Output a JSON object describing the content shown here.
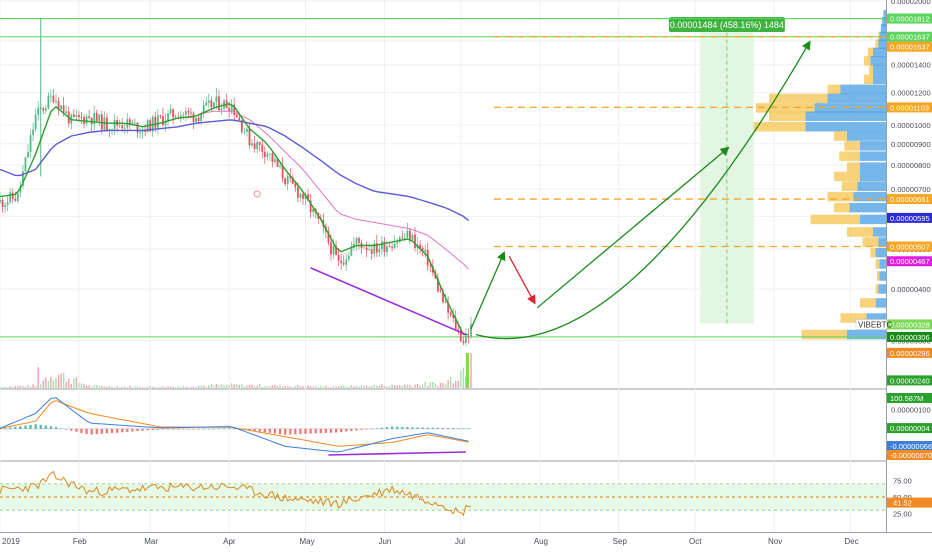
{
  "symbol": "VIBEBTC",
  "time_axis": [
    "2019",
    "Feb",
    "Mar",
    "Apr",
    "May",
    "Jun",
    "Jul",
    "Aug",
    "Sep",
    "Oct",
    "Nov",
    "Dec"
  ],
  "colors": {
    "grid": "#eef0f3",
    "axis_text": "#4a4e59",
    "up": "#53b987",
    "down": "#eb4d5c",
    "ema": "#2ca02c",
    "ma_blue": "#5b5bd6",
    "ma_pink": "#e377c2",
    "level_green": "#5cd65c",
    "level_orange": "#f5a623",
    "projection": "#1a8a1a",
    "divergence": "#9b30d9",
    "vp_blue": "#4a9de2",
    "vp_yellow": "#f7c85a",
    "rsi_line": "#d9891e",
    "rsi_band": "#e6f8e6",
    "macd_line": "#3d7fd9",
    "signal_line": "#f08a24"
  },
  "price_axis_ticks": [
    "0.00002000",
    "0.00001800",
    "0.00001600",
    "0.00001400",
    "0.00001200",
    "0.00001000",
    "0.00000900",
    "0.00000800",
    "0.00000700",
    "0.00000600",
    "0.00000500",
    "0.00000400",
    "0.00000300"
  ],
  "price_badges": [
    {
      "text": "0.00001812",
      "price": 1.812e-05,
      "color": "#5cd65c"
    },
    {
      "text": "0.00001637",
      "price": 1.637e-05,
      "color": "#5cd65c"
    },
    {
      "text": "0.00001637",
      "price": 1.637e-05,
      "color": "#f5a623"
    },
    {
      "text": "0.00001103",
      "price": 1.103e-05,
      "color": "#f5a623"
    },
    {
      "text": "0.00000661",
      "price": 6.61e-06,
      "color": "#f5a623"
    },
    {
      "text": "0.00000595",
      "price": 5.95e-06,
      "color": "#2c2cd6"
    },
    {
      "text": "0.00000507",
      "price": 5.07e-06,
      "color": "#f5a623"
    },
    {
      "text": "0.00000467",
      "price": 4.67e-06,
      "color": "#e020e0"
    },
    {
      "text": "0.00000328",
      "price": 3.28e-06,
      "color": "#7ed957"
    },
    {
      "text": "0.00000306",
      "price": 3.06e-06,
      "color": "#1a8a1a"
    },
    {
      "text": "0.00000296",
      "price": 2.96e-06,
      "color": "#f08a24"
    },
    {
      "text": "0.00000240",
      "price": 2.4e-06,
      "color": "#2ca02c"
    },
    {
      "text": "100.587M",
      "price": 2.3e-06,
      "color": "#2ca02c"
    }
  ],
  "measure_label": "0.00001484 (458.16%) 1484",
  "macd_axis": {
    "ticks": [
      "0.00000100"
    ],
    "badges": [
      {
        "text": "0.00000004",
        "color": "#2ca02c"
      },
      {
        "text": "-0.00000066",
        "color": "#3d7fd9"
      },
      {
        "text": "-0.00000070",
        "color": "#f08a24"
      }
    ]
  },
  "rsi_axis": {
    "ticks": [
      "75.00",
      "50.00",
      "25.00"
    ],
    "badge": "41.52"
  },
  "chart_data": [
    {
      "type": "line",
      "name": "price",
      "x": [
        "2019-01-01",
        "2019-01-08",
        "2019-01-15",
        "2019-01-22",
        "2019-01-29",
        "2019-02-05",
        "2019-02-12",
        "2019-02-19",
        "2019-02-26",
        "2019-03-05",
        "2019-03-12",
        "2019-03-19",
        "2019-03-26",
        "2019-04-02",
        "2019-04-09",
        "2019-04-16",
        "2019-04-23",
        "2019-04-30",
        "2019-05-07",
        "2019-05-14",
        "2019-05-21",
        "2019-05-28",
        "2019-06-04",
        "2019-06-11",
        "2019-06-18",
        "2019-06-25",
        "2019-07-02",
        "2019-07-05"
      ],
      "series": [
        {
          "name": "close",
          "values": [
            6.5e-06,
            6.7e-06,
            1.05e-05,
            1.18e-05,
            1.02e-05,
            1.05e-05,
            1e-05,
            1.01e-05,
            9.8e-06,
            1.03e-05,
            1.07e-05,
            1.05e-05,
            1.13e-05,
            1.12e-05,
            9.2e-06,
            8.6e-06,
            7.4e-06,
            6.7e-06,
            5.7e-06,
            4.6e-06,
            5.2e-06,
            5e-06,
            5.2e-06,
            5.4e-06,
            4.7e-06,
            3.6e-06,
            3e-06,
            3.2e-06
          ]
        },
        {
          "name": "ema_short",
          "values": [
            6.7e-06,
            6.8e-06,
            8.5e-06,
            1.12e-05,
            1.03e-05,
            1.02e-05,
            1.01e-05,
            1.01e-05,
            9.9e-06,
            1.01e-05,
            1.04e-05,
            1.05e-05,
            1.1e-05,
            1.13e-05,
            9.8e-06,
            9e-06,
            7.8e-06,
            6.9e-06,
            5.9e-06,
            4.9e-06,
            5.1e-06,
            5.1e-06,
            5.2e-06,
            5.3e-06,
            4.8e-06,
            3.8e-06,
            3.1e-06,
            3.1e-06
          ]
        },
        {
          "name": "ma_long",
          "values": [
            7.8e-06,
            7.5e-06,
            7.8e-06,
            8.9e-06,
            9.4e-06,
            9.6e-06,
            9.7e-06,
            9.7e-06,
            9.7e-06,
            9.8e-06,
            9.9e-06,
            1.01e-05,
            1.02e-05,
            1.03e-05,
            1.01e-05,
            9.9e-06,
            9.4e-06,
            8.8e-06,
            8.2e-06,
            7.6e-06,
            7.2e-06,
            6.9e-06,
            6.8e-06,
            6.7e-06,
            6.5e-06,
            6.3e-06,
            6e-06,
            5.8e-06
          ]
        },
        {
          "name": "ma_mid",
          "values": [
            null,
            null,
            null,
            null,
            null,
            null,
            null,
            null,
            null,
            null,
            null,
            1.06e-05,
            1.08e-05,
            1.08e-05,
            1.03e-05,
            9.5e-06,
            8.6e-06,
            7.8e-06,
            6.9e-06,
            6.1e-06,
            5.9e-06,
            5.8e-06,
            5.7e-06,
            5.6e-06,
            5.4e-06,
            5e-06,
            4.6e-06,
            4.4e-06
          ]
        }
      ],
      "ylim": [
        2.3e-06,
        2.01e-05
      ],
      "yscale": "log",
      "xlim": [
        "2019-01-01",
        "2019-12-15"
      ],
      "horizontal_levels": [
        {
          "price": 1.812e-05,
          "style": "solid",
          "color": "#5cd65c"
        },
        {
          "price": 1.637e-05,
          "style": "solid",
          "color": "#5cd65c"
        },
        {
          "price": 1.637e-05,
          "style": "dashed",
          "color": "#f5a623"
        },
        {
          "price": 1.103e-05,
          "style": "dashed",
          "color": "#f5a623"
        },
        {
          "price": 6.61e-06,
          "style": "dashed",
          "color": "#f5a623"
        },
        {
          "price": 5.07e-06,
          "style": "dashed",
          "color": "#f5a623"
        },
        {
          "price": 3.06e-06,
          "style": "solid",
          "color": "#5cd65c"
        }
      ],
      "projection_arrows": [
        {
          "from": [
            "2019-07-05",
            3.2e-06
          ],
          "to": [
            "2019-07-18",
            4.9e-06
          ],
          "color": "#1a8a1a"
        },
        {
          "from": [
            "2019-07-20",
            4.8e-06
          ],
          "to": [
            "2019-07-30",
            3.7e-06
          ],
          "color": "#e0202c"
        },
        {
          "from": [
            "2019-07-31",
            3.6e-06
          ],
          "to": [
            "2019-10-14",
            8.8e-06
          ],
          "color": "#1a8a1a"
        }
      ],
      "projection_curve": {
        "from": [
          "2019-07-07",
          3.1e-06
        ],
        "control": [
          "2019-09-01",
          2.5e-06
        ],
        "to": [
          "2019-11-15",
          1.59e-05
        ],
        "color": "#1a8a1a"
      },
      "divergence_line": {
        "from": [
          "2019-05-03",
          4.5e-06
        ],
        "to": [
          "2019-07-03",
          3.1e-06
        ]
      },
      "measure_zone": {
        "x_from": "2019-10-03",
        "x_to": "2019-10-24",
        "y_from": 3.3e-06,
        "y_to": 1.812e-05
      },
      "volume_profile": [
        {
          "price": 1.85e-05,
          "blue": 0.02,
          "yellow": 0.0
        },
        {
          "price": 1.78e-05,
          "blue": 0.03,
          "yellow": 0.0
        },
        {
          "price": 1.71e-05,
          "blue": 0.04,
          "yellow": 0.0
        },
        {
          "price": 1.64e-05,
          "blue": 0.05,
          "yellow": 0.01
        },
        {
          "price": 1.57e-05,
          "blue": 0.06,
          "yellow": 0.02
        },
        {
          "price": 1.5e-05,
          "blue": 0.1,
          "yellow": 0.04
        },
        {
          "price": 1.43e-05,
          "blue": 0.12,
          "yellow": 0.05
        },
        {
          "price": 1.36e-05,
          "blue": 0.1,
          "yellow": 0.03
        },
        {
          "price": 1.29e-05,
          "blue": 0.1,
          "yellow": 0.07
        },
        {
          "price": 1.22e-05,
          "blue": 0.35,
          "yellow": 0.1
        },
        {
          "price": 1.16e-05,
          "blue": 0.45,
          "yellow": 0.45
        },
        {
          "price": 1.1e-05,
          "blue": 0.55,
          "yellow": 0.45
        },
        {
          "price": 1.05e-05,
          "blue": 0.62,
          "yellow": 0.28
        },
        {
          "price": 9.9e-06,
          "blue": 0.62,
          "yellow": 0.4
        },
        {
          "price": 9.4e-06,
          "blue": 0.3,
          "yellow": 0.1
        },
        {
          "price": 8.9e-06,
          "blue": 0.2,
          "yellow": 0.12
        },
        {
          "price": 8.4e-06,
          "blue": 0.2,
          "yellow": 0.16
        },
        {
          "price": 7.9e-06,
          "blue": 0.2,
          "yellow": 0.1
        },
        {
          "price": 7.5e-06,
          "blue": 0.2,
          "yellow": 0.2
        },
        {
          "price": 7.1e-06,
          "blue": 0.22,
          "yellow": 0.12
        },
        {
          "price": 6.7e-06,
          "blue": 0.25,
          "yellow": 0.2
        },
        {
          "price": 6.3e-06,
          "blue": 0.28,
          "yellow": 0.12
        },
        {
          "price": 5.9e-06,
          "blue": 0.2,
          "yellow": 0.38
        },
        {
          "price": 5.5e-06,
          "blue": 0.1,
          "yellow": 0.2
        },
        {
          "price": 5.2e-06,
          "blue": 0.06,
          "yellow": 0.12
        },
        {
          "price": 4.9e-06,
          "blue": 0.08,
          "yellow": 0.04
        },
        {
          "price": 4.6e-06,
          "blue": 0.05,
          "yellow": 0.03
        },
        {
          "price": 4.3e-06,
          "blue": 0.05,
          "yellow": 0.02
        },
        {
          "price": 4e-06,
          "blue": 0.06,
          "yellow": 0.02
        },
        {
          "price": 3.7e-06,
          "blue": 0.08,
          "yellow": 0.12
        },
        {
          "price": 3.4e-06,
          "blue": 0.15,
          "yellow": 0.2
        },
        {
          "price": 3.1e-06,
          "blue": 0.3,
          "yellow": 0.35
        }
      ]
    },
    {
      "type": "bar",
      "name": "volume",
      "x": [
        "2019-01-01",
        "2019-01-15",
        "2019-01-22",
        "2019-02-05",
        "2019-03-05",
        "2019-04-02",
        "2019-05-07",
        "2019-06-04",
        "2019-06-25",
        "2019-07-05"
      ],
      "values": [
        5,
        9,
        60,
        8,
        4,
        12,
        6,
        10,
        18,
        100.587
      ],
      "unit": "M"
    },
    {
      "type": "line",
      "name": "macd",
      "x": [
        "2019-01-01",
        "2019-01-15",
        "2019-01-22",
        "2019-02-05",
        "2019-03-05",
        "2019-04-02",
        "2019-04-23",
        "2019-05-14",
        "2019-06-04",
        "2019-06-18",
        "2019-07-05"
      ],
      "series": [
        {
          "name": "macd",
          "values": [
            3e-08,
            8e-07,
            1.7e-06,
            3e-07,
            5e-08,
            1.2e-07,
            -9e-07,
            -1.2e-06,
            -5e-07,
            -2e-07,
            -6.6e-07
          ]
        },
        {
          "name": "signal",
          "values": [
            2e-08,
            4e-07,
            1.5e-06,
            8e-07,
            1e-07,
            8e-08,
            -4e-07,
            -9e-07,
            -7e-07,
            -3e-07,
            -7e-07
          ]
        }
      ],
      "histogram_last": 4e-08
    },
    {
      "type": "line",
      "name": "rsi",
      "x": [
        "2019-01-01",
        "2019-01-15",
        "2019-01-22",
        "2019-02-05",
        "2019-03-05",
        "2019-04-02",
        "2019-04-23",
        "2019-05-14",
        "2019-06-04",
        "2019-06-25",
        "2019-07-01",
        "2019-07-05"
      ],
      "series": [
        {
          "name": "rsi",
          "values": [
            60,
            66,
            82,
            58,
            64,
            66,
            48,
            40,
            62,
            38,
            24,
            41.52
          ]
        }
      ],
      "ylim": [
        0,
        100
      ],
      "bands": [
        30,
        50,
        70
      ]
    }
  ]
}
